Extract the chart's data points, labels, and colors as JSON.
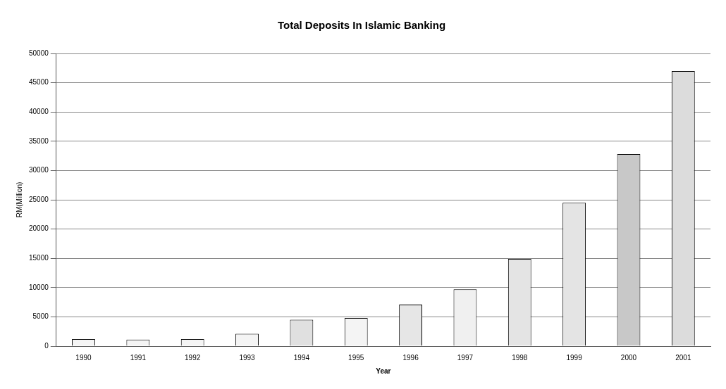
{
  "chart_data": {
    "type": "bar",
    "title": "Total Deposits In Islamic Banking",
    "xlabel": "Year",
    "ylabel": "RM(Million)",
    "categories": [
      "1990",
      "1991",
      "1992",
      "1993",
      "1994",
      "1995",
      "1996",
      "1997",
      "1998",
      "1999",
      "2000",
      "2001"
    ],
    "values": [
      1200,
      1100,
      1200,
      2100,
      4500,
      4800,
      7100,
      9700,
      14900,
      24500,
      32800,
      47000
    ],
    "colors": [
      "#f4f4f4",
      "#f4f4f4",
      "#f4f4f4",
      "#f4f4f4",
      "#e0e0e0",
      "#f4f4f4",
      "#e6e6e6",
      "#f0f0f0",
      "#e4e4e4",
      "#e4e4e4",
      "#c8c8c8",
      "#dcdcdc"
    ],
    "ylim": [
      0,
      50000
    ],
    "yticks": [
      0,
      5000,
      10000,
      15000,
      20000,
      25000,
      30000,
      35000,
      40000,
      45000,
      50000
    ],
    "grid": "y",
    "legend": false
  }
}
